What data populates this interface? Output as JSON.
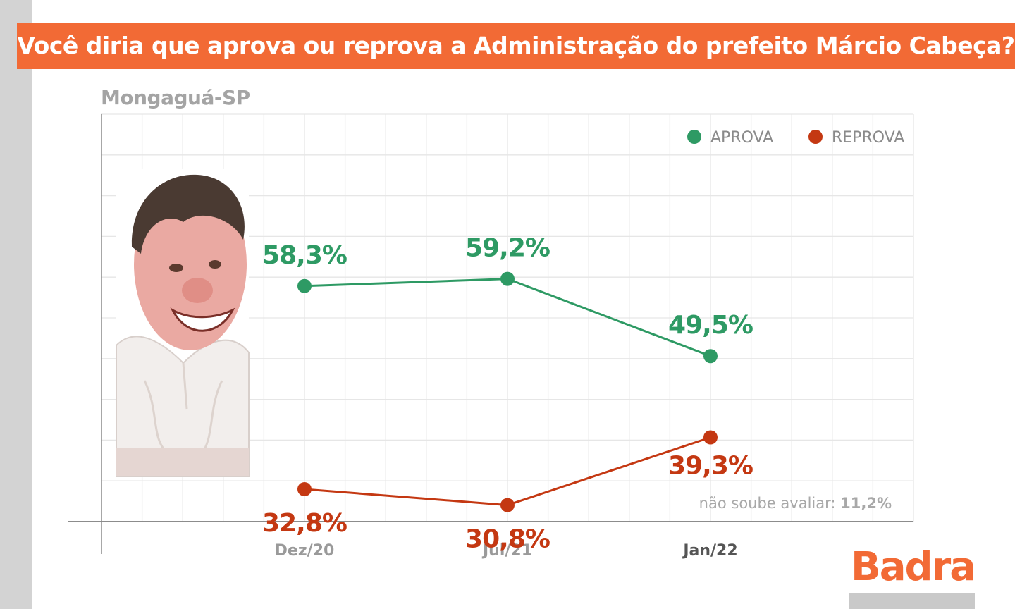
{
  "header": {
    "title": "Você diria que aprova ou reprova a Administração do prefeito Márcio Cabeça?"
  },
  "subtitle": "Mongaguá-SP",
  "brand": {
    "name": "Badra",
    "color": "#f26a35"
  },
  "colors": {
    "header_bg": "#f26a35",
    "aprova": "#2e9a64",
    "reprova": "#c43812",
    "grid": "#e4e4e4"
  },
  "chart_data": {
    "type": "line",
    "categories": [
      "Dez/20",
      "Jul/21",
      "Jan/22"
    ],
    "series": [
      {
        "name": "APROVA",
        "values": [
          58.3,
          59.2,
          49.5
        ],
        "labels": [
          "58,3%",
          "59,2%",
          "49,5%"
        ],
        "color": "#2e9a64"
      },
      {
        "name": "REPROVA",
        "values": [
          32.8,
          30.8,
          39.3
        ],
        "labels": [
          "32,8%",
          "30,8%",
          "39,3%"
        ],
        "color": "#c43812"
      }
    ],
    "legend": {
      "position": "top-right",
      "items": [
        "APROVA",
        "REPROVA"
      ]
    },
    "note": {
      "label": "não soube avaliar:",
      "value": "11,2%"
    },
    "ylim": [
      0,
      100
    ],
    "grid": true
  }
}
